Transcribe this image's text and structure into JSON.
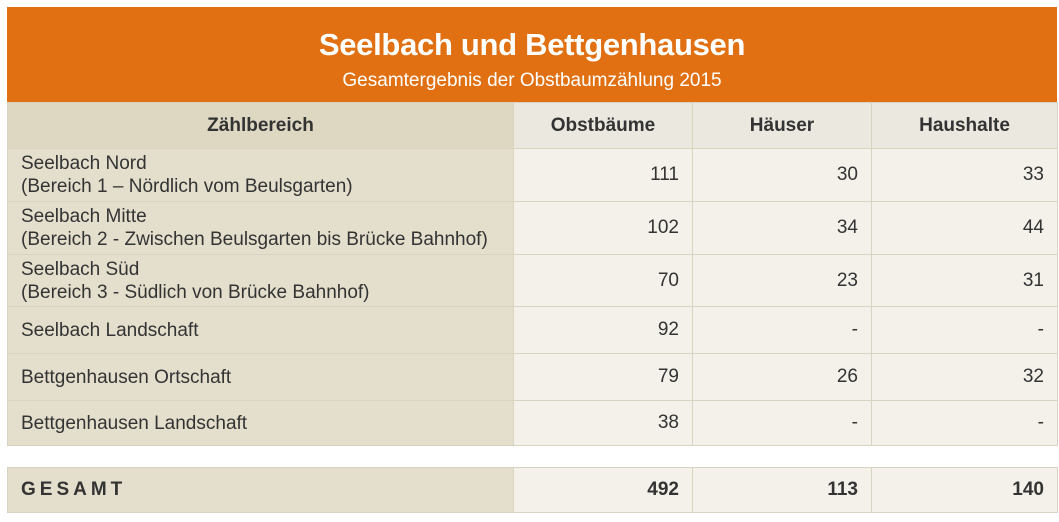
{
  "header": {
    "title": "Seelbach und Bettgenhausen",
    "subtitle": "Gesamtergebnis der Obstbaumzählung 2015"
  },
  "columns": [
    "Zählbereich",
    "Obstbäume",
    "Häuser",
    "Haushalte"
  ],
  "rows": [
    {
      "name": "Seelbach Nord",
      "detail": "(Bereich 1 – Nördlich vom Beulsgarten)",
      "trees": "111",
      "houses": "30",
      "households": "33"
    },
    {
      "name": "Seelbach Mitte",
      "detail": "(Bereich 2 - Zwischen Beulsgarten bis Brücke Bahnhof)",
      "trees": "102",
      "houses": "34",
      "households": "44"
    },
    {
      "name": "Seelbach Süd",
      "detail": "(Bereich 3 - Südlich von Brücke Bahnhof)",
      "trees": "70",
      "houses": "23",
      "households": "31"
    },
    {
      "name": "Seelbach Landschaft",
      "detail": "",
      "trees": "92",
      "houses": "-",
      "households": "-"
    },
    {
      "name": "Bettgenhausen Ortschaft",
      "detail": "",
      "trees": "79",
      "houses": "26",
      "households": "32"
    },
    {
      "name": "Bettgenhausen Landschaft",
      "detail": "",
      "trees": "38",
      "houses": "-",
      "households": "-"
    }
  ],
  "total": {
    "label": "GESAMT",
    "trees": "492",
    "houses": "113",
    "households": "140"
  },
  "colors": {
    "header_bg": "#e07012",
    "label_col_bg": "#e4dfcd",
    "cell_bg": "#f3f1ea"
  }
}
